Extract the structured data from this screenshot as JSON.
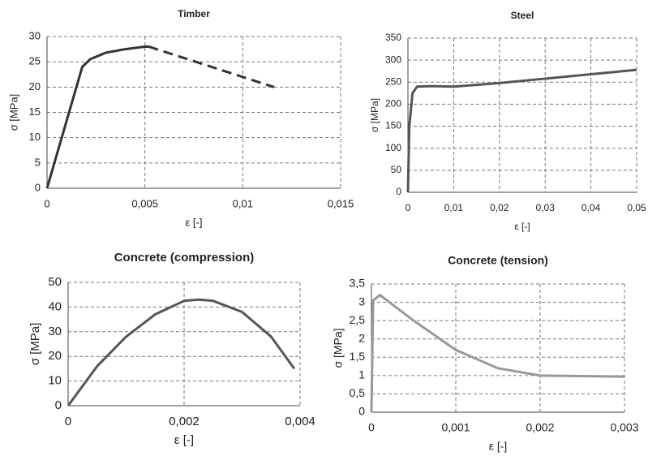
{
  "chart_data": [
    {
      "type": "line",
      "title": "Timber",
      "xlabel": "ε [-]",
      "ylabel": "σ [MPa]",
      "grid": true,
      "xlim": [
        0,
        0.015
      ],
      "xticks": [
        0,
        {
          "value": 0.005,
          "label": "0,005"
        },
        {
          "value": 0.01,
          "label": "0,01"
        },
        {
          "value": 0.015,
          "label": "0,015"
        }
      ],
      "ylim": [
        0,
        30
      ],
      "yticks": [
        0,
        5,
        10,
        15,
        20,
        25,
        30
      ],
      "series": [
        {
          "color": "#333333",
          "style": "solid",
          "x": [
            0,
            0.0018,
            0.0022,
            0.003,
            0.004,
            0.005,
            0.0052
          ],
          "values": [
            0,
            24,
            25.5,
            26.8,
            27.5,
            28,
            28
          ]
        },
        {
          "color": "#333333",
          "style": "dashed",
          "x": [
            0.0052,
            0.0116
          ],
          "values": [
            28,
            20
          ]
        }
      ]
    },
    {
      "type": "line",
      "title": "Steel",
      "xlabel": "ε [-]",
      "ylabel": "σ [MPa]",
      "grid": true,
      "xlim": [
        0,
        0.05
      ],
      "xticks": [
        0,
        {
          "value": 0.01,
          "label": "0,01"
        },
        {
          "value": 0.02,
          "label": "0,02"
        },
        {
          "value": 0.03,
          "label": "0,03"
        },
        {
          "value": 0.04,
          "label": "0,04"
        },
        {
          "value": 0.05,
          "label": "0,05"
        }
      ],
      "ylim": [
        0,
        350
      ],
      "yticks": [
        0,
        50,
        100,
        150,
        200,
        250,
        300,
        350
      ],
      "series": [
        {
          "color": "#555555",
          "style": "solid",
          "x": [
            0,
            0.0003,
            0.001,
            0.002,
            0.005,
            0.01,
            0.02,
            0.03,
            0.04,
            0.05
          ],
          "values": [
            0,
            150,
            225,
            240,
            241,
            240,
            248,
            258,
            268,
            278
          ]
        }
      ]
    },
    {
      "type": "line",
      "title": "Concrete (compression)",
      "xlabel": "ε [-]",
      "ylabel": "σ [MPa]",
      "grid": true,
      "xlim": [
        0,
        0.004
      ],
      "xticks": [
        0,
        {
          "value": 0.002,
          "label": "0,002"
        },
        {
          "value": 0.004,
          "label": "0,004"
        }
      ],
      "ylim": [
        0,
        50
      ],
      "yticks": [
        0,
        10,
        20,
        30,
        40,
        50
      ],
      "series": [
        {
          "color": "#555555",
          "style": "solid",
          "x": [
            0,
            0.0005,
            0.001,
            0.0015,
            0.002,
            0.00225,
            0.0025,
            0.003,
            0.0035,
            0.0039
          ],
          "values": [
            0,
            16,
            28,
            37,
            42.5,
            43,
            42.5,
            38,
            28,
            15
          ]
        }
      ]
    },
    {
      "type": "line",
      "title": "Concrete (tension)",
      "xlabel": "ε [-]",
      "ylabel": "σ [MPa]",
      "grid": true,
      "xlim": [
        0,
        0.003
      ],
      "xticks": [
        0,
        {
          "value": 0.001,
          "label": "0,001"
        },
        {
          "value": 0.002,
          "label": "0,002"
        },
        {
          "value": 0.003,
          "label": "0,003"
        }
      ],
      "ylim": [
        0,
        3.5
      ],
      "yticks": [
        0,
        {
          "value": 0.5,
          "label": "0,5"
        },
        1,
        {
          "value": 1.5,
          "label": "1,5"
        },
        2,
        {
          "value": 2.5,
          "label": "2,5"
        },
        3,
        {
          "value": 3.5,
          "label": "3,5"
        }
      ],
      "series": [
        {
          "color": "#999999",
          "style": "solid",
          "x": [
            0,
            2e-05,
            0.0001,
            0.0005,
            0.001,
            0.0015,
            0.002,
            0.003
          ],
          "values": [
            0,
            3.05,
            3.2,
            2.5,
            1.7,
            1.2,
            1.0,
            0.97
          ]
        }
      ]
    }
  ]
}
